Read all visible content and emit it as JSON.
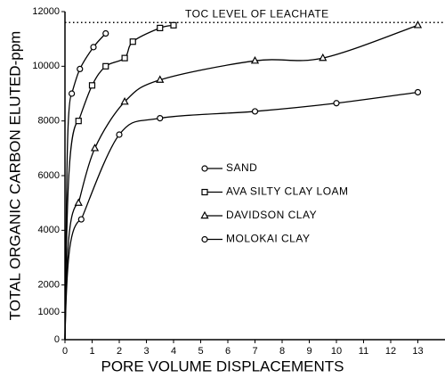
{
  "chart_data": {
    "type": "scatter",
    "xlabel": "PORE VOLUME DISPLACEMENTS",
    "ylabel": "TOTAL ORGANIC CARBON ELUTED-ppm",
    "xlim": [
      0,
      14
    ],
    "ylim": [
      0,
      12000
    ],
    "xticks": [
      0,
      1,
      2,
      3,
      4,
      5,
      6,
      7,
      8,
      9,
      10,
      11,
      12,
      13
    ],
    "yticks": [
      0,
      1000,
      2000,
      4000,
      6000,
      8000,
      10000,
      12000
    ],
    "reference_line": {
      "value": 11600,
      "label": "TOC LEVEL OF LEACHATE"
    },
    "legend": "center-right",
    "series": [
      {
        "name": "SAND",
        "marker": "circle",
        "color": "#000000",
        "x": [
          0.25,
          0.55,
          1.05,
          1.5
        ],
        "values": [
          9000,
          9900,
          10700,
          11200
        ]
      },
      {
        "name": "AVA SILTY CLAY LOAM",
        "marker": "square",
        "color": "#000000",
        "x": [
          0.5,
          1.0,
          1.5,
          2.2,
          2.5,
          3.5,
          4.0
        ],
        "values": [
          8000,
          9300,
          10000,
          10300,
          10900,
          11400,
          11500
        ]
      },
      {
        "name": "DAVIDSON CLAY",
        "marker": "triangle",
        "color": "#000000",
        "x": [
          0.5,
          1.1,
          2.2,
          3.5,
          7.0,
          9.5,
          13.0
        ],
        "values": [
          5000,
          7000,
          8700,
          9500,
          10200,
          10300,
          11500
        ]
      },
      {
        "name": "MOLOKAI CLAY",
        "marker": "circle",
        "color": "#000000",
        "x": [
          0.6,
          2.0,
          3.5,
          7.0,
          10.0,
          13.0
        ],
        "values": [
          4400,
          7500,
          8100,
          8350,
          8650,
          9050
        ]
      }
    ]
  }
}
